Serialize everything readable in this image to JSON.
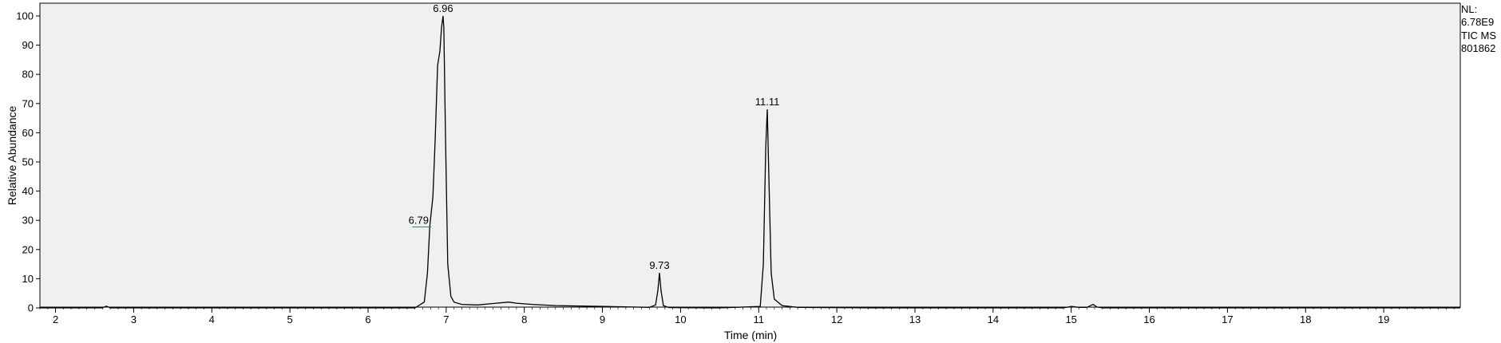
{
  "chart_data": {
    "type": "line",
    "xlabel": "Time (min)",
    "ylabel": "Relative Abundance",
    "xlim": [
      1.8,
      19.98
    ],
    "ylim": [
      0,
      100
    ],
    "x_ticks": [
      2,
      3,
      4,
      5,
      6,
      7,
      8,
      9,
      10,
      11,
      12,
      13,
      14,
      15,
      16,
      17,
      18,
      19
    ],
    "y_ticks": [
      0,
      10,
      20,
      30,
      40,
      50,
      60,
      70,
      80,
      90,
      100
    ],
    "grid": false,
    "colors": {
      "trace": "#000000",
      "plot_background": "#f0f0f0",
      "label_leader": "#2e8b57"
    },
    "series": [
      {
        "x": [
          1.8,
          2.6,
          2.65,
          2.7,
          3.5,
          6.6,
          6.72,
          6.76,
          6.79,
          6.83,
          6.86,
          6.89,
          6.92,
          6.94,
          6.96,
          6.97,
          6.99,
          7.02,
          7.06,
          7.1,
          7.2,
          7.4,
          7.6,
          7.8,
          7.9,
          8.1,
          8.4,
          8.8,
          9.2,
          9.6,
          9.68,
          9.71,
          9.73,
          9.75,
          9.78,
          9.85,
          10.5,
          11.02,
          11.06,
          11.09,
          11.11,
          11.13,
          11.16,
          11.2,
          11.3,
          11.5,
          12.5,
          14.9,
          15.0,
          15.1,
          15.2,
          15.28,
          15.33,
          15.4,
          15.6,
          19.98
        ],
        "y": [
          0,
          0,
          0.6,
          0,
          0,
          0,
          2,
          12,
          28,
          38,
          58,
          83,
          88,
          96,
          100,
          96,
          60,
          15,
          4,
          2,
          1.2,
          1,
          1.5,
          2,
          1.6,
          1.2,
          0.8,
          0.6,
          0.4,
          0.2,
          1,
          6,
          12,
          6,
          0.8,
          0.1,
          0,
          0.5,
          15,
          55,
          68,
          45,
          12,
          3,
          0.8,
          0.2,
          0,
          0,
          0.5,
          0.2,
          0.2,
          1.2,
          0.3,
          0,
          0,
          0
        ]
      }
    ],
    "peak_labels": [
      {
        "text": "6.96",
        "x": 6.96,
        "y": 100
      },
      {
        "text": "6.79",
        "x": 6.79,
        "y": 28
      },
      {
        "text": "9.73",
        "x": 9.73,
        "y": 12
      },
      {
        "text": "11.11",
        "x": 11.11,
        "y": 68
      }
    ],
    "annotation_lines": [
      "NL:",
      "6.78E9",
      "TIC  MS",
      "801862"
    ]
  }
}
